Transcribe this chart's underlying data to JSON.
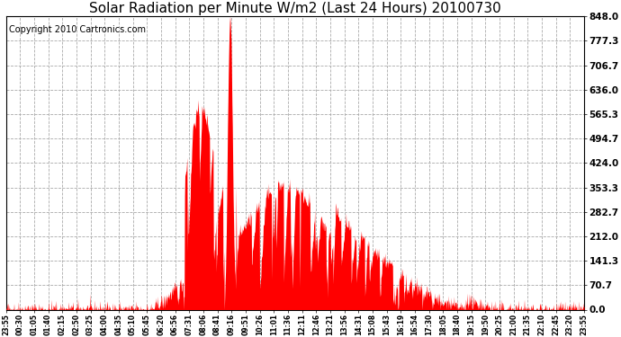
{
  "title": "Solar Radiation per Minute W/m2 (Last 24 Hours) 20100730",
  "copyright": "Copyright 2010 Cartronics.com",
  "y_ticks": [
    0.0,
    70.7,
    141.3,
    212.0,
    282.7,
    353.3,
    424.0,
    494.7,
    565.3,
    636.0,
    706.7,
    777.3,
    848.0
  ],
  "y_max": 848.0,
  "y_min": 0.0,
  "x_labels": [
    "23:55",
    "00:30",
    "01:05",
    "01:40",
    "02:15",
    "02:50",
    "03:25",
    "04:00",
    "04:35",
    "05:10",
    "05:45",
    "06:20",
    "06:56",
    "07:31",
    "08:06",
    "08:41",
    "09:16",
    "09:51",
    "10:26",
    "11:01",
    "11:36",
    "12:11",
    "12:46",
    "13:21",
    "13:56",
    "14:31",
    "15:08",
    "15:43",
    "16:19",
    "16:54",
    "17:30",
    "18:05",
    "18:40",
    "19:15",
    "19:50",
    "20:25",
    "21:00",
    "21:35",
    "22:10",
    "22:45",
    "23:20",
    "23:55"
  ],
  "fill_color": "#FF0000",
  "line_color": "#FF0000",
  "background_color": "#FFFFFF",
  "grid_color": "#CC0000",
  "title_fontsize": 11,
  "copyright_fontsize": 7,
  "figsize": [
    6.9,
    3.75
  ],
  "dpi": 100
}
